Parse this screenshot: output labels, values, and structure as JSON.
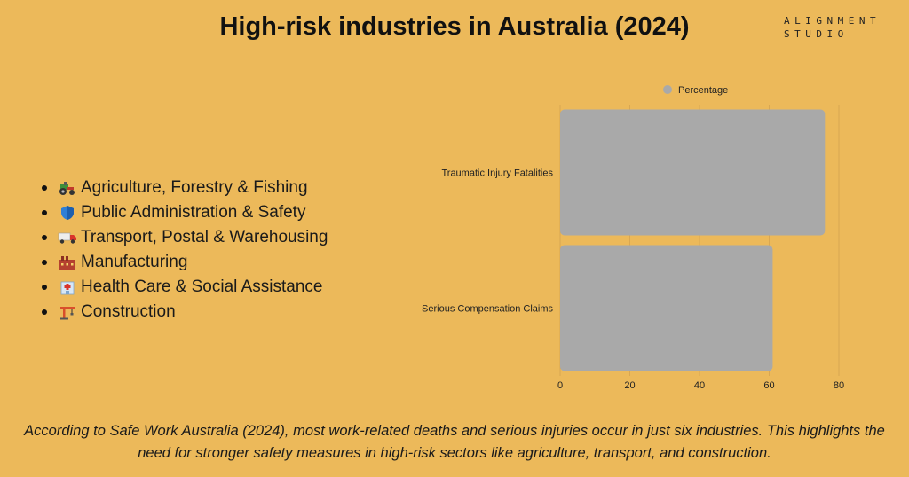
{
  "title": "High-risk industries in Australia (2024)",
  "logo": {
    "line1": "ALIGNMENT",
    "line2": "STUDIO"
  },
  "industries": [
    {
      "icon": "tractor-icon",
      "label": "Agriculture, Forestry & Fishing"
    },
    {
      "icon": "shield-icon",
      "label": "Public Administration & Safety"
    },
    {
      "icon": "truck-icon",
      "label": "Transport, Postal & Warehousing"
    },
    {
      "icon": "factory-icon",
      "label": "Manufacturing"
    },
    {
      "icon": "hospital-icon",
      "label": "Health Care & Social Assistance"
    },
    {
      "icon": "crane-icon",
      "label": "Construction"
    }
  ],
  "caption": "According to Safe Work Australia (2024), most work-related deaths and serious injuries occur in just six industries. This highlights the need for stronger safety measures in high-risk sectors like agriculture, transport, and construction.",
  "colors": {
    "background": "#ecb95a",
    "bar": "#a9a9a9",
    "grid": "#d9a752"
  },
  "chart_data": {
    "type": "bar",
    "orientation": "horizontal",
    "categories": [
      "Traumatic Injury Fatalities",
      "Serious Compensation Claims"
    ],
    "series": [
      {
        "name": "Percentage",
        "values": [
          76,
          61
        ]
      }
    ],
    "xlim": [
      0,
      80
    ],
    "xticks": [
      0,
      20,
      40,
      60,
      80
    ],
    "legend": "top",
    "grid": true
  }
}
